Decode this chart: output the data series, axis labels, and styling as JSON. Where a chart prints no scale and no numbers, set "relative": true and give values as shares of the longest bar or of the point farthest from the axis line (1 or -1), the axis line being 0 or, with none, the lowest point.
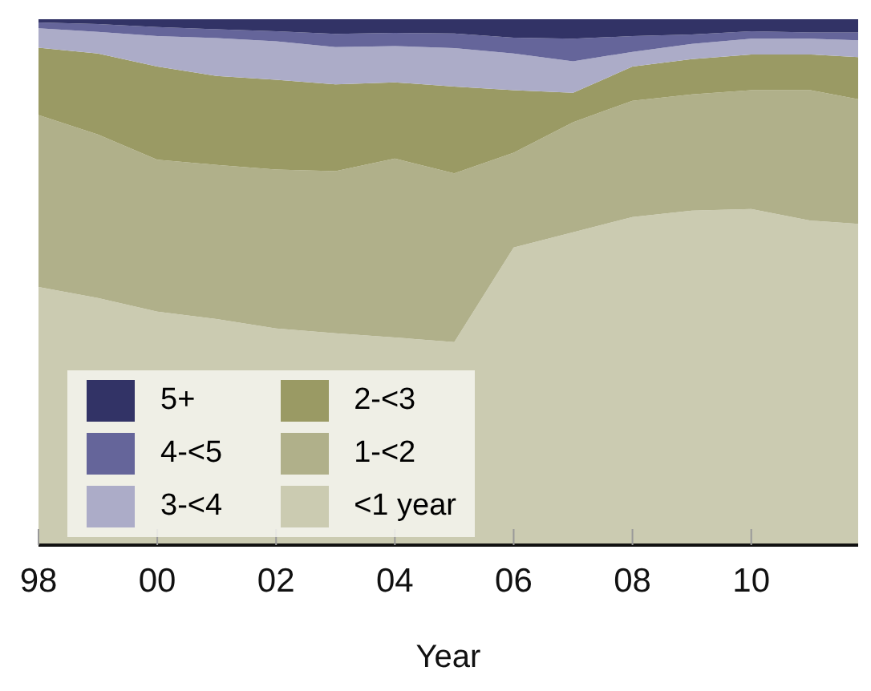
{
  "chart_data": {
    "type": "area",
    "stacked": true,
    "relative": true,
    "xlabel": "Year",
    "x": [
      1998,
      1999,
      2000,
      2001,
      2002,
      2003,
      2004,
      2005,
      2006,
      2007,
      2008,
      2009,
      2010,
      2011,
      2011.8
    ],
    "xlim": [
      1998,
      2011.8
    ],
    "xticks": [
      {
        "value": 1998,
        "label": "98"
      },
      {
        "value": 2000,
        "label": "00"
      },
      {
        "value": 2002,
        "label": "02"
      },
      {
        "value": 2004,
        "label": "04"
      },
      {
        "value": 2006,
        "label": "06"
      },
      {
        "value": 2008,
        "label": "08"
      },
      {
        "value": 2010,
        "label": "10"
      }
    ],
    "legend": "bottom left",
    "grid": false,
    "series": [
      {
        "name": "<1 year",
        "color": "#cbcbb1",
        "values": [
          0.491,
          0.47,
          0.444,
          0.43,
          0.412,
          0.403,
          0.395,
          0.386,
          0.566,
          0.595,
          0.624,
          0.636,
          0.639,
          0.617,
          0.611
        ]
      },
      {
        "name": "1-<2",
        "color": "#b0b08a",
        "values": [
          0.327,
          0.311,
          0.289,
          0.293,
          0.302,
          0.308,
          0.34,
          0.321,
          0.18,
          0.209,
          0.221,
          0.221,
          0.226,
          0.248,
          0.237
        ]
      },
      {
        "name": "2-<3",
        "color": "#9a9a64",
        "values": [
          0.128,
          0.154,
          0.177,
          0.169,
          0.171,
          0.165,
          0.145,
          0.165,
          0.119,
          0.056,
          0.065,
          0.067,
          0.068,
          0.068,
          0.08
        ]
      },
      {
        "name": "3-<4",
        "color": "#acacc8",
        "values": [
          0.037,
          0.041,
          0.058,
          0.072,
          0.073,
          0.071,
          0.069,
          0.073,
          0.07,
          0.06,
          0.028,
          0.029,
          0.03,
          0.03,
          0.032
        ]
      },
      {
        "name": "4-<5",
        "color": "#65659a",
        "values": [
          0.011,
          0.015,
          0.017,
          0.017,
          0.019,
          0.025,
          0.025,
          0.028,
          0.03,
          0.043,
          0.03,
          0.018,
          0.014,
          0.012,
          0.015
        ]
      },
      {
        "name": "5+",
        "color": "#323366",
        "values": [
          0.006,
          0.009,
          0.015,
          0.019,
          0.023,
          0.028,
          0.026,
          0.027,
          0.035,
          0.037,
          0.032,
          0.029,
          0.023,
          0.025,
          0.025
        ]
      }
    ]
  }
}
